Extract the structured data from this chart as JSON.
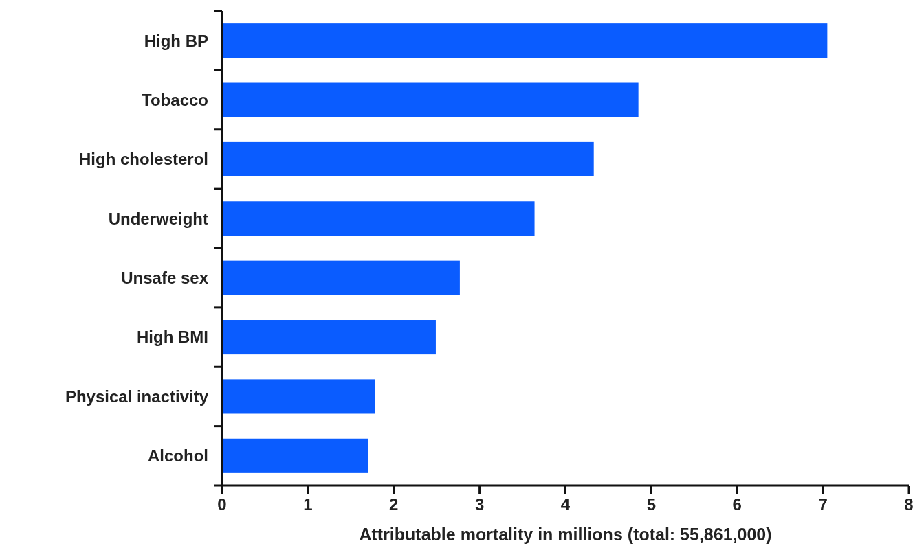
{
  "chart_data": {
    "type": "bar",
    "orientation": "horizontal",
    "xlabel": "Attributable mortality in millions (total: 55,861,000)",
    "categories": [
      "High BP",
      "Tobacco",
      "High cholesterol",
      "Underweight",
      "Unsafe sex",
      "High BMI",
      "Physical inactivity",
      "Alcohol"
    ],
    "values": [
      7.05,
      4.85,
      4.33,
      3.64,
      2.77,
      2.49,
      1.78,
      1.7
    ],
    "color": "#0a5cff",
    "xlim": [
      0,
      8
    ],
    "xticks": [
      0,
      1,
      2,
      3,
      4,
      5,
      6,
      7,
      8
    ],
    "grid": false
  }
}
